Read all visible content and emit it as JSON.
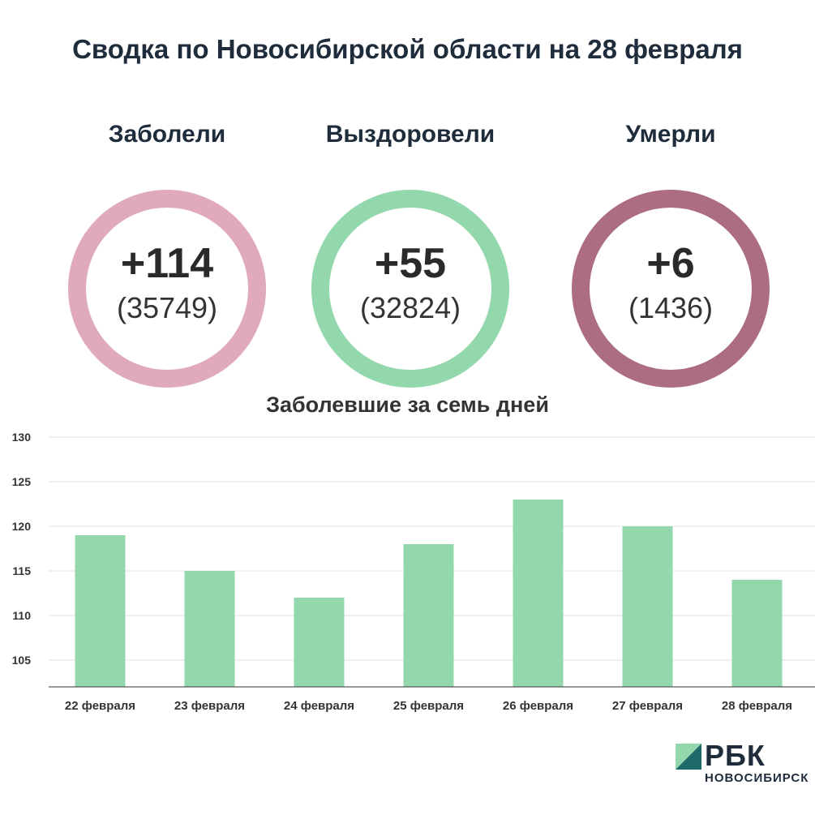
{
  "title": "Сводка по Новосибирской области на 28 февраля",
  "stats": [
    {
      "label": "Заболели",
      "delta": "+114",
      "total": "(35749)",
      "color": "#e0aabb"
    },
    {
      "label": "Выздоровели",
      "delta": "+55",
      "total": "(32824)",
      "color": "#93d8ad"
    },
    {
      "label": "Умерли",
      "delta": "+6",
      "total": "(1436)",
      "color": "#ac6d82"
    }
  ],
  "chart_data": {
    "type": "bar",
    "title": "Заболевшие за семь дней",
    "categories": [
      "22 февраля",
      "23 февраля",
      "24 февраля",
      "25 февраля",
      "26 февраля",
      "27 февраля",
      "28 февраля"
    ],
    "values": [
      119,
      115,
      112,
      118,
      123,
      120,
      114
    ],
    "ylim": [
      102,
      130
    ],
    "yticks": [
      105,
      110,
      115,
      120,
      125,
      130
    ],
    "grid": true,
    "bar_color": "#93d8ad"
  },
  "logo": {
    "name": "РБК",
    "sub": "НОВОСИБИРСК"
  }
}
